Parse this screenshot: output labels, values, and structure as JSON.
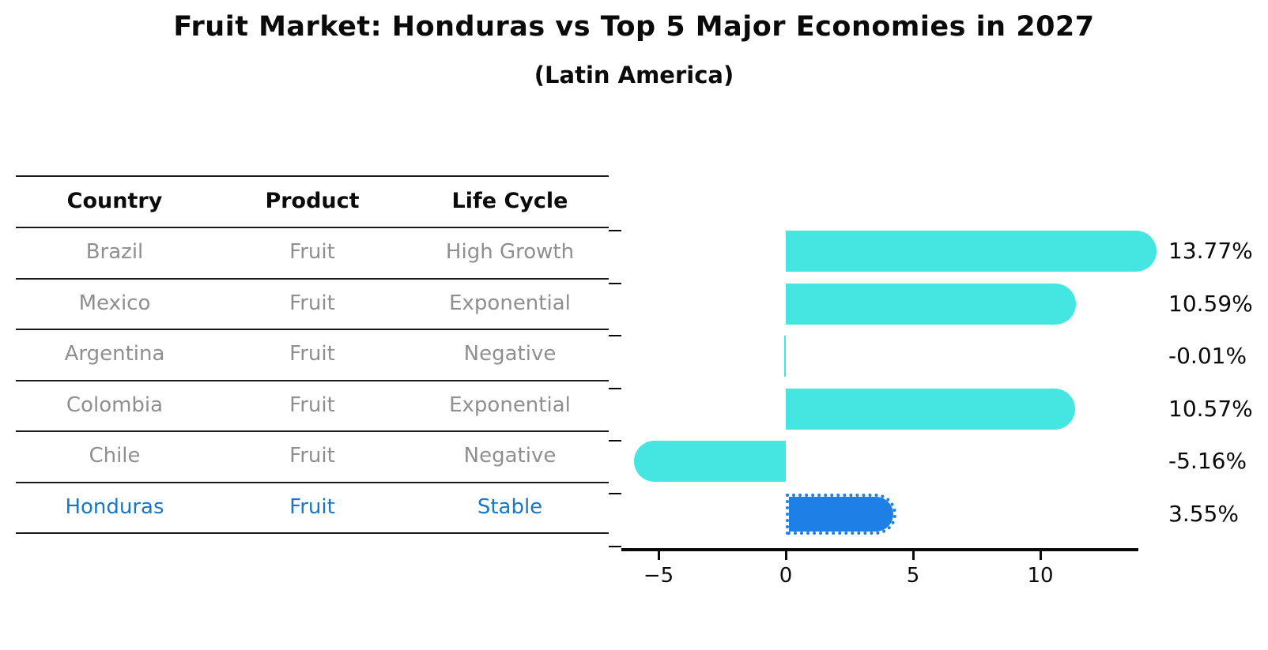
{
  "title": "Fruit Market: Honduras vs Top 5 Major Economies in 2027",
  "subtitle": "(Latin America)",
  "table": {
    "columns": [
      "Country",
      "Product",
      "Life Cycle"
    ],
    "rows": [
      {
        "country": "Brazil",
        "product": "Fruit",
        "life_cycle": "High Growth"
      },
      {
        "country": "Mexico",
        "product": "Fruit",
        "life_cycle": "Exponential"
      },
      {
        "country": "Argentina",
        "product": "Fruit",
        "life_cycle": "Negative"
      },
      {
        "country": "Colombia",
        "product": "Fruit",
        "life_cycle": "Exponential"
      },
      {
        "country": "Chile",
        "product": "Fruit",
        "life_cycle": "Negative"
      },
      {
        "country": "Honduras",
        "product": "Fruit",
        "life_cycle": "Stable"
      }
    ],
    "highlight_row_index": 5
  },
  "chart_data": {
    "type": "bar",
    "orientation": "horizontal",
    "categories": [
      "Brazil",
      "Mexico",
      "Argentina",
      "Colombia",
      "Chile",
      "Honduras"
    ],
    "values": [
      13.77,
      10.59,
      -0.01,
      10.57,
      -5.16,
      3.55
    ],
    "value_labels": [
      "13.77%",
      "10.59%",
      "-0.01%",
      "10.57%",
      "-5.16%",
      "3.55%"
    ],
    "title": "Fruit Market: Honduras vs Top 5 Major Economies in 2027",
    "subtitle": "(Latin America)",
    "xlabel": "",
    "ylabel": "",
    "xlim": [
      -6.46,
      13.85
    ],
    "xticks": [
      -5,
      0,
      5,
      10
    ],
    "xtick_labels": [
      "−5",
      "0",
      "5",
      "10"
    ],
    "grid": false,
    "legend": null,
    "highlight_index": 5,
    "bar_color": "#45E6E2",
    "highlight_bar_color": "#1E7FE4",
    "highlight_text_color": "#1878C8",
    "body_text_color": "#8f8f8f",
    "axis_color": "#0a0a0a"
  }
}
